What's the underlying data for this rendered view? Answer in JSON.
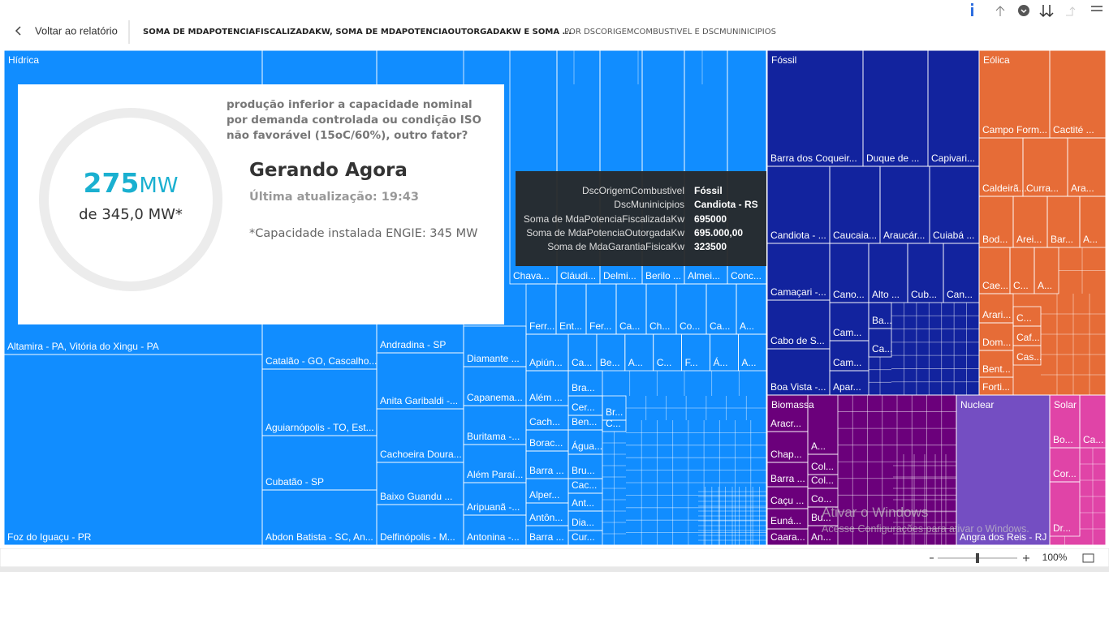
{
  "nav": {
    "back": "Voltar ao relatório",
    "title": "SOMA DE MDAPOTENCIAFISCALIZADAKW, SOMA DE MDAPOTENCIAOUTORGADAKW E SOMA ...",
    "subtitle": "POR DSCORIGEMCOMBUSTIVEL E DSCMUNINICIPIOS"
  },
  "treemap": {
    "groups": [
      {
        "name": "Hídrica",
        "color": "#118dff",
        "tiles": [
          "Altamira - PA, Vitória do Xingu - PA",
          "Foz do Iguaçu - PR",
          "Catalão - GO, Cascalho...",
          "Aguiarnópolis - TO, Est...",
          "Cubatão - SP",
          "Abdon Batista - SC, An...",
          "Andradina - SP",
          "Anita Garibaldi -...",
          "Cachoeira Doura...",
          "Baixo Guandu ...",
          "Delfinópolis - M...",
          "Diamante ...",
          "Capanema...",
          "Buritama -...",
          "Além Paraí...",
          "Aripuanã -...",
          "Antonina -...",
          "Chava...",
          "Cláudi...",
          "Delmi...",
          "Berilo ...",
          "Almei...",
          "Conc...",
          "Ferr...",
          "Ent...",
          "Fer...",
          "Ca...",
          "Ch...",
          "Co...",
          "Ca...",
          "A...",
          "Apiún...",
          "Ca...",
          "Be...",
          "A...",
          "C...",
          "F...",
          "Á...",
          "A...",
          "Além ...",
          "Cach...",
          "Borac...",
          "Barra ...",
          "Alper...",
          "Antôn...",
          "Barra ...",
          "Bra...",
          "Cer...",
          "Ben...",
          "Água...",
          "Bru...",
          "Cac...",
          "Ant...",
          "Dia...",
          "Cur...",
          "Br...",
          "C..."
        ]
      },
      {
        "name": "Fóssil",
        "color": "#12239e",
        "tiles": [
          "Barra dos Coqueir...",
          "Duque de ...",
          "Capivari...",
          "Candiota - ...",
          "Caucaia...",
          "Araucár...",
          "Cuiabá ...",
          "Camaçari -...",
          "Cabo de S...",
          "Boa Vista -...",
          "Cano...",
          "Alto ...",
          "Cub...",
          "Can...",
          "Cam...",
          "Cam...",
          "Apar...",
          "Ba...",
          "Ca..."
        ]
      },
      {
        "name": "Eólica",
        "color": "#e66c37",
        "tiles": [
          "Campo Form...",
          "Cactité ...",
          "Caldeirã...",
          "Curra...",
          "Ara...",
          "Bod...",
          "Arei...",
          "Bar...",
          "A...",
          "Cae...",
          "C...",
          "A...",
          "Arari...",
          "Dom...",
          "Bent...",
          "Forti...",
          "C...",
          "Caf...",
          "Cas..."
        ]
      },
      {
        "name": "Biomassa",
        "color": "#6b007b",
        "tiles": [
          "Aracr...",
          "Chap...",
          "Barra ...",
          "Caçu ...",
          "Euná...",
          "Caara...",
          "A...",
          "Col...",
          "Col...",
          "Co...",
          "Bu...",
          "An..."
        ]
      },
      {
        "name": "Nuclear",
        "color": "#744ec2",
        "tiles": [
          "Angra dos Reis - RJ"
        ]
      },
      {
        "name": "Solar",
        "color": "#e044a7",
        "tiles": [
          "Bo...",
          "Ca...",
          "Cor...",
          "Dr..."
        ]
      }
    ]
  },
  "card": {
    "value": "275",
    "unit": "MW",
    "subtitle": "de 345,0 MW*",
    "question": "produção inferior a capacidade nominal por demanda controlada ou condição ISO não favorável (15oC/60%), outro fator?",
    "heading": "Gerando Agora",
    "updated": "Última atualização: 19:43",
    "note": "*Capacidade instalada ENGIE: 345 MW"
  },
  "tooltip": {
    "rows": [
      {
        "label": "DscOrigemCombustivel",
        "value": "Fóssil"
      },
      {
        "label": "DscMuninicipios",
        "value": "Candiota - RS"
      },
      {
        "label": "Soma de MdaPotenciaFiscalizadaKw",
        "value": "695000"
      },
      {
        "label": "Soma de MdaPotenciaOutorgadaKw",
        "value": "695.000,00"
      },
      {
        "label": "Soma de MdaGarantiaFisicaKw",
        "value": "323500"
      }
    ]
  },
  "zoom": {
    "level": "100%"
  },
  "watermark": {
    "title": "Ativar o Windows",
    "text": "Acesse Configurações para ativar o Windows."
  }
}
